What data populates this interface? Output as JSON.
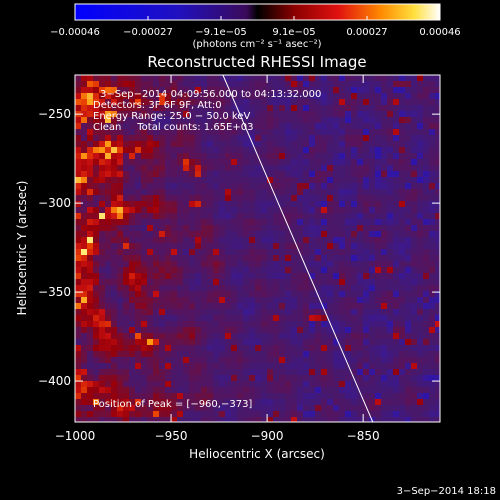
{
  "chart_data": {
    "type": "heatmap",
    "title": "Reconstructed RHESSI Image",
    "xlabel": "Heliocentric X (arcsec)",
    "ylabel": "Heliocentric Y (arcsec)",
    "xlim": [
      -1000,
      -810
    ],
    "ylim": [
      -423,
      -228
    ],
    "xticks": [
      {
        "v": -1000,
        "label": "−1000"
      },
      {
        "v": -950,
        "label": "−950"
      },
      {
        "v": -900,
        "label": "−900"
      },
      {
        "v": -850,
        "label": "−850"
      }
    ],
    "yticks": [
      {
        "v": -250,
        "label": "−250"
      },
      {
        "v": -300,
        "label": "−300"
      },
      {
        "v": -350,
        "label": "−350"
      },
      {
        "v": -400,
        "label": "−400"
      }
    ],
    "colorbar": {
      "range": [
        -0.00046,
        0.00046
      ],
      "tick_labels": [
        "−0.00046",
        "−0.00027",
        "−9.1e−05",
        "9.1e−05",
        "0.00027",
        "0.00046"
      ],
      "units_label": "(photons cm⁻² s⁻¹ asec⁻²)"
    },
    "annotations": [
      "3−Sep−2014 04:09:56.000 to 04:13:32.000",
      "Detectors: 3F 6F 9F, Att:0",
      "Energy Range: 25.0 − 50.0 keV",
      "Clean     Total counts: 1.65E+03"
    ],
    "peak_label": "Position of Peak = [−960,−373]",
    "peak": [
      -960,
      -373
    ],
    "limb_line": [
      [
        -923,
        -228
      ],
      [
        -845,
        -423
      ]
    ],
    "timestamp": "3−Sep−2014 18:18"
  }
}
